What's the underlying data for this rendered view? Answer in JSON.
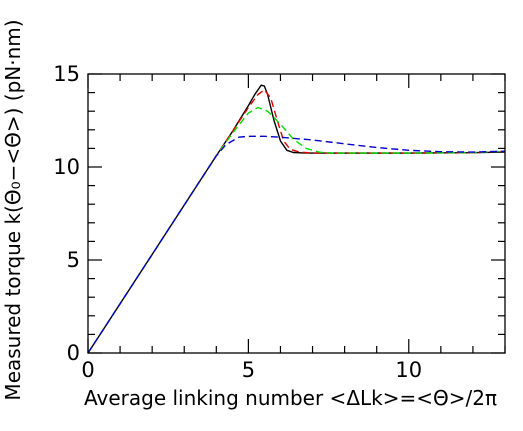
{
  "chart_data": {
    "type": "line",
    "xlabel": "Average linking number <ΔLk>=<Θ>/2π",
    "ylabel": "Measured torque k(Θ₀−<Θ>) (pN·nm)",
    "xlim": [
      0,
      13
    ],
    "ylim": [
      0,
      15
    ],
    "xticks": [
      0,
      5,
      10
    ],
    "yticks": [
      0,
      5,
      10,
      15
    ],
    "grid": false,
    "series": [
      {
        "color": "#000000",
        "dash": "solid",
        "x": [
          0,
          1,
          2,
          3,
          4,
          4.5,
          5,
          5.2,
          5.4,
          5.5,
          5.6,
          5.8,
          6.0,
          6.2,
          6.4,
          6.8,
          8,
          10,
          12,
          13
        ],
        "y": [
          0,
          2.65,
          5.3,
          7.95,
          10.6,
          11.9,
          13.3,
          13.9,
          14.4,
          14.35,
          13.9,
          12.5,
          11.4,
          10.9,
          10.78,
          10.75,
          10.75,
          10.75,
          10.77,
          10.8
        ]
      },
      {
        "color": "#e00000",
        "dash": "dashed",
        "x": [
          0,
          1,
          2,
          3,
          4,
          4.5,
          5,
          5.3,
          5.5,
          5.7,
          5.9,
          6.1,
          6.3,
          6.6,
          7,
          8,
          10,
          12,
          13
        ],
        "y": [
          0,
          2.65,
          5.3,
          7.95,
          10.6,
          11.9,
          13.2,
          13.9,
          14.15,
          13.7,
          12.5,
          11.4,
          10.95,
          10.8,
          10.75,
          10.75,
          10.75,
          10.77,
          10.85
        ]
      },
      {
        "color": "#00dd00",
        "dash": "dashed",
        "x": [
          0,
          1,
          2,
          3,
          4,
          4.5,
          5,
          5.3,
          5.6,
          6,
          6.4,
          6.8,
          7.2,
          7.6,
          8,
          10,
          12,
          13
        ],
        "y": [
          0,
          2.65,
          5.3,
          7.95,
          10.6,
          11.8,
          12.9,
          13.2,
          13.0,
          12.3,
          11.5,
          11.0,
          10.8,
          10.75,
          10.75,
          10.75,
          10.78,
          10.85
        ]
      },
      {
        "color": "#0000cc",
        "dash": "dashed",
        "x": [
          0,
          1,
          2,
          3,
          4,
          4.3,
          4.7,
          5,
          5.5,
          6,
          7,
          8,
          9,
          10,
          11,
          12,
          13
        ],
        "y": [
          0,
          2.65,
          5.3,
          7.95,
          10.6,
          11.2,
          11.6,
          11.65,
          11.65,
          11.6,
          11.45,
          11.25,
          11.05,
          10.9,
          10.82,
          10.8,
          10.85
        ]
      }
    ]
  }
}
